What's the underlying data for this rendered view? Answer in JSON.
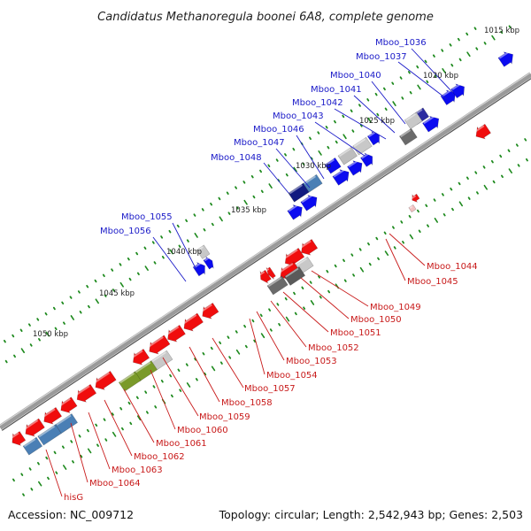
{
  "title": "Candidatus Methanoregula boonei 6A8, complete genome",
  "footer": {
    "accession": "Accession: NC_009712",
    "summary": "Topology: circular; Length: 2,542,943 bp; Genes: 2,503"
  },
  "colors": {
    "forward": "#0b0bf0",
    "reverse": "#f00d0d",
    "label_forward": "#1a1ac8",
    "label_reverse": "#c81a1a",
    "backbone": "#8c8c8c",
    "tick": "#1e8a1e"
  },
  "kbp_labels": [
    "1015 kbp",
    "1020 kbp",
    "1025 kbp",
    "1030 kbp",
    "1035 kbp",
    "1040 kbp",
    "1045 kbp",
    "1050 kbp"
  ],
  "top_gene_labels": [
    "Mboo_1036",
    "Mboo_1037",
    "Mboo_1040",
    "Mboo_1041",
    "Mboo_1042",
    "Mboo_1043",
    "Mboo_1046",
    "Mboo_1047",
    "Mboo_1048",
    "Mboo_1055",
    "Mboo_1056"
  ],
  "bottom_gene_labels": [
    "Mboo_1044",
    "Mboo_1045",
    "Mboo_1049",
    "Mboo_1050",
    "Mboo_1051",
    "Mboo_1052",
    "Mboo_1053",
    "Mboo_1054",
    "Mboo_1057",
    "Mboo_1058",
    "Mboo_1059",
    "Mboo_1060",
    "Mboo_1061",
    "Mboo_1062",
    "Mboo_1063",
    "Mboo_1064",
    "hisG"
  ]
}
